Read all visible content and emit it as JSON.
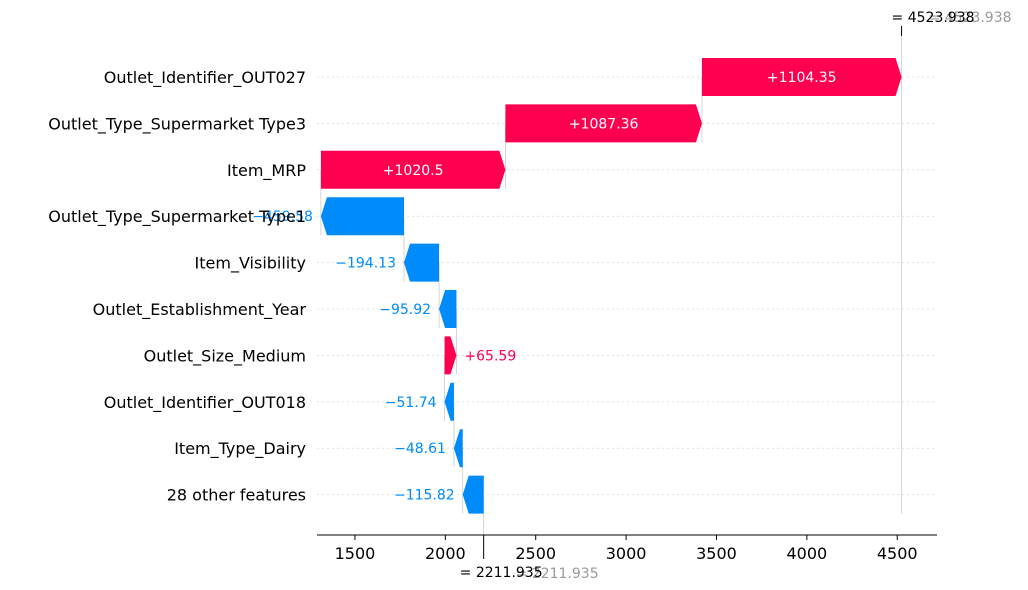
{
  "colors": {
    "positive": "#ff0051",
    "negative": "#008bfb",
    "axis": "#000000",
    "ghost": "#999999",
    "grid": "#cccccc"
  },
  "chart_data": {
    "type": "waterfall",
    "base_value": 2211.935,
    "base_label": "= 2211.935",
    "base_ghost_label": "= 2211.935",
    "final_value": 4523.938,
    "final_label": "= 4523.938",
    "final_ghost_label": "= 4523.938",
    "xlim": [
      1290,
      4720
    ],
    "x_ticks": [
      1500,
      2000,
      2500,
      3000,
      3500,
      4000,
      4500
    ],
    "x_tick_labels": [
      "1500",
      "2000",
      "2500",
      "3000",
      "3500",
      "4000",
      "4500"
    ],
    "features": [
      {
        "name": "Outlet_Identifier_OUT027",
        "value": 1104.35,
        "label": "+1104.35"
      },
      {
        "name": "Outlet_Type_Supermarket Type3",
        "value": 1087.36,
        "label": "+1087.36"
      },
      {
        "name": "Item_MRP",
        "value": 1020.5,
        "label": "+1020.5"
      },
      {
        "name": "Outlet_Type_Supermarket Type1",
        "value": -459.58,
        "label": "−459.58"
      },
      {
        "name": "Item_Visibility",
        "value": -194.13,
        "label": "−194.13"
      },
      {
        "name": "Outlet_Establishment_Year",
        "value": -95.92,
        "label": "−95.92"
      },
      {
        "name": "Outlet_Size_Medium",
        "value": 65.59,
        "label": "+65.59"
      },
      {
        "name": "Outlet_Identifier_OUT018",
        "value": -51.74,
        "label": "−51.74"
      },
      {
        "name": "Item_Type_Dairy",
        "value": -48.61,
        "label": "−48.61"
      },
      {
        "name": "28 other features",
        "value": -115.82,
        "label": "−115.82"
      }
    ]
  }
}
